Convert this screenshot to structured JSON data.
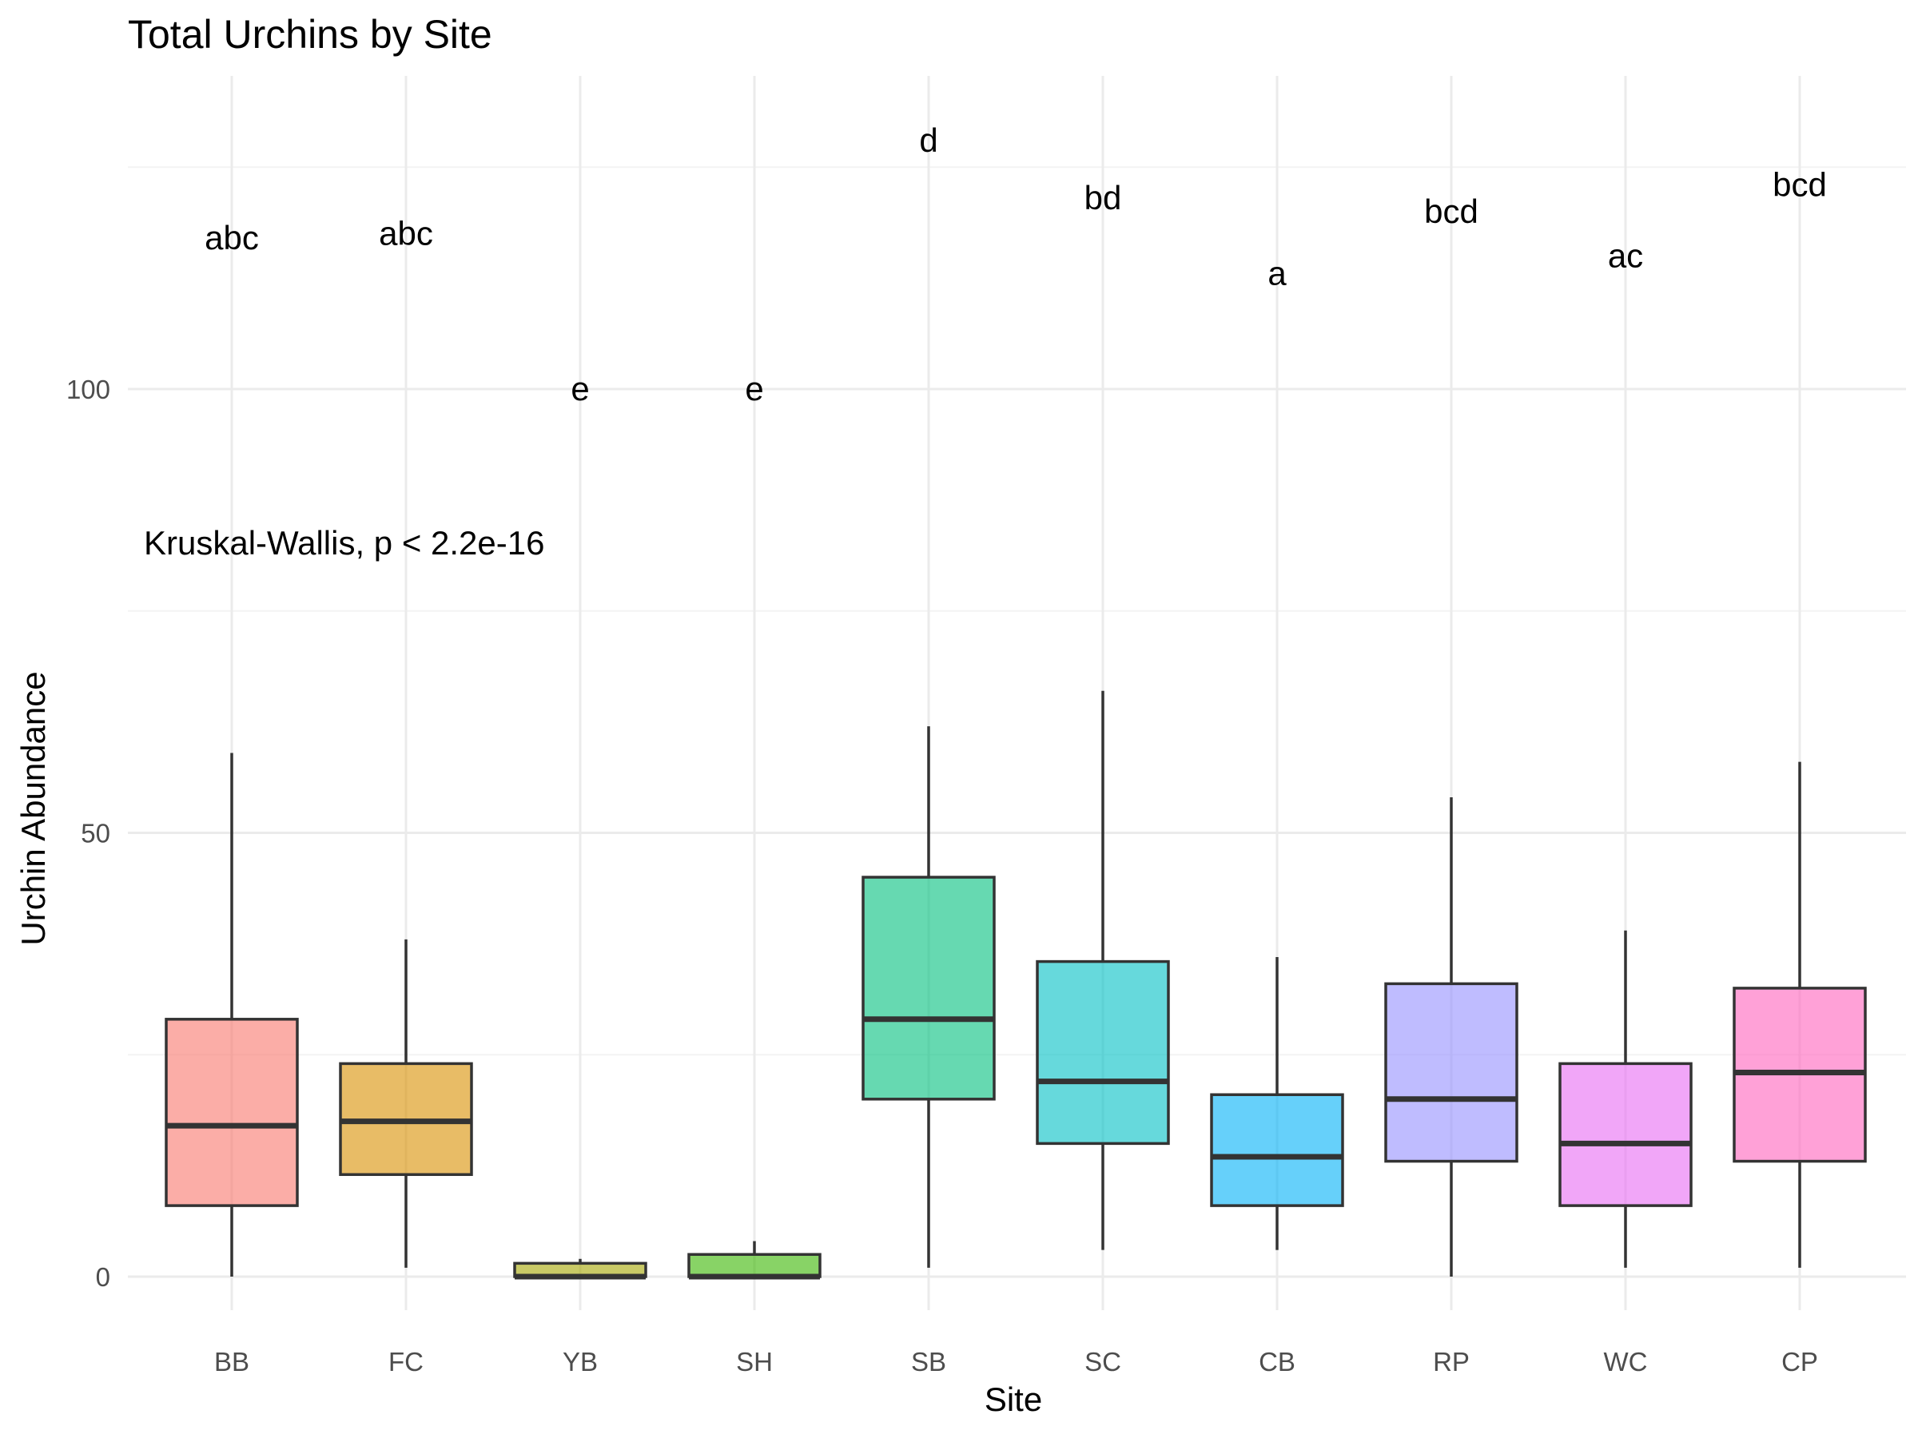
{
  "chart_data": {
    "type": "boxplot",
    "title": "Total Urchins by Site",
    "xlabel": "Site",
    "ylabel": "Urchin Abundance",
    "ylim": [
      -4,
      135
    ],
    "yticks": [
      0,
      50,
      100
    ],
    "grid": true,
    "legend": "none",
    "annotation": "Kruskal-Wallis, p < 2.2e-16",
    "annotation_pos": {
      "x": "BB",
      "y": 82
    },
    "categories": [
      "BB",
      "FC",
      "YB",
      "SH",
      "SB",
      "SC",
      "CB",
      "RP",
      "WC",
      "CP"
    ],
    "boxes": [
      {
        "site": "BB",
        "min": 0,
        "q1": 8,
        "median": 17,
        "q3": 29,
        "max": 59,
        "letter": "abc",
        "letter_y": 117,
        "color": "#F8766D"
      },
      {
        "site": "FC",
        "min": 1,
        "q1": 11.5,
        "median": 17.5,
        "q3": 24,
        "max": 38,
        "letter": "abc",
        "letter_y": 117.5,
        "color": "#D89000"
      },
      {
        "site": "YB",
        "min": 0,
        "q1": 0,
        "median": 0,
        "q3": 1.5,
        "max": 2,
        "letter": "e",
        "letter_y": 100,
        "color": "#A3A500"
      },
      {
        "site": "SH",
        "min": 0,
        "q1": 0,
        "median": 0,
        "q3": 2.5,
        "max": 4,
        "letter": "e",
        "letter_y": 100,
        "color": "#39B600"
      },
      {
        "site": "SB",
        "min": 1,
        "q1": 20,
        "median": 29,
        "q3": 45,
        "max": 62,
        "letter": "d",
        "letter_y": 128,
        "color": "#00BF7D"
      },
      {
        "site": "SC",
        "min": 3,
        "q1": 15,
        "median": 22,
        "q3": 35.5,
        "max": 66,
        "letter": "bd",
        "letter_y": 121.5,
        "color": "#00BFC4"
      },
      {
        "site": "CB",
        "min": 3,
        "q1": 8,
        "median": 13.5,
        "q3": 20.5,
        "max": 36,
        "letter": "a",
        "letter_y": 113,
        "color": "#00B0F6"
      },
      {
        "site": "RP",
        "min": 0,
        "q1": 13,
        "median": 20,
        "q3": 33,
        "max": 54,
        "letter": "bcd",
        "letter_y": 120,
        "color": "#9590FF"
      },
      {
        "site": "WC",
        "min": 1,
        "q1": 8,
        "median": 15,
        "q3": 24,
        "max": 39,
        "letter": "ac",
        "letter_y": 115,
        "color": "#E76BF3"
      },
      {
        "site": "CP",
        "min": 1,
        "q1": 13,
        "median": 23,
        "q3": 32.5,
        "max": 58,
        "letter": "bcd",
        "letter_y": 123,
        "color": "#FF62BC"
      }
    ],
    "box_fill_opacity": 0.6
  }
}
